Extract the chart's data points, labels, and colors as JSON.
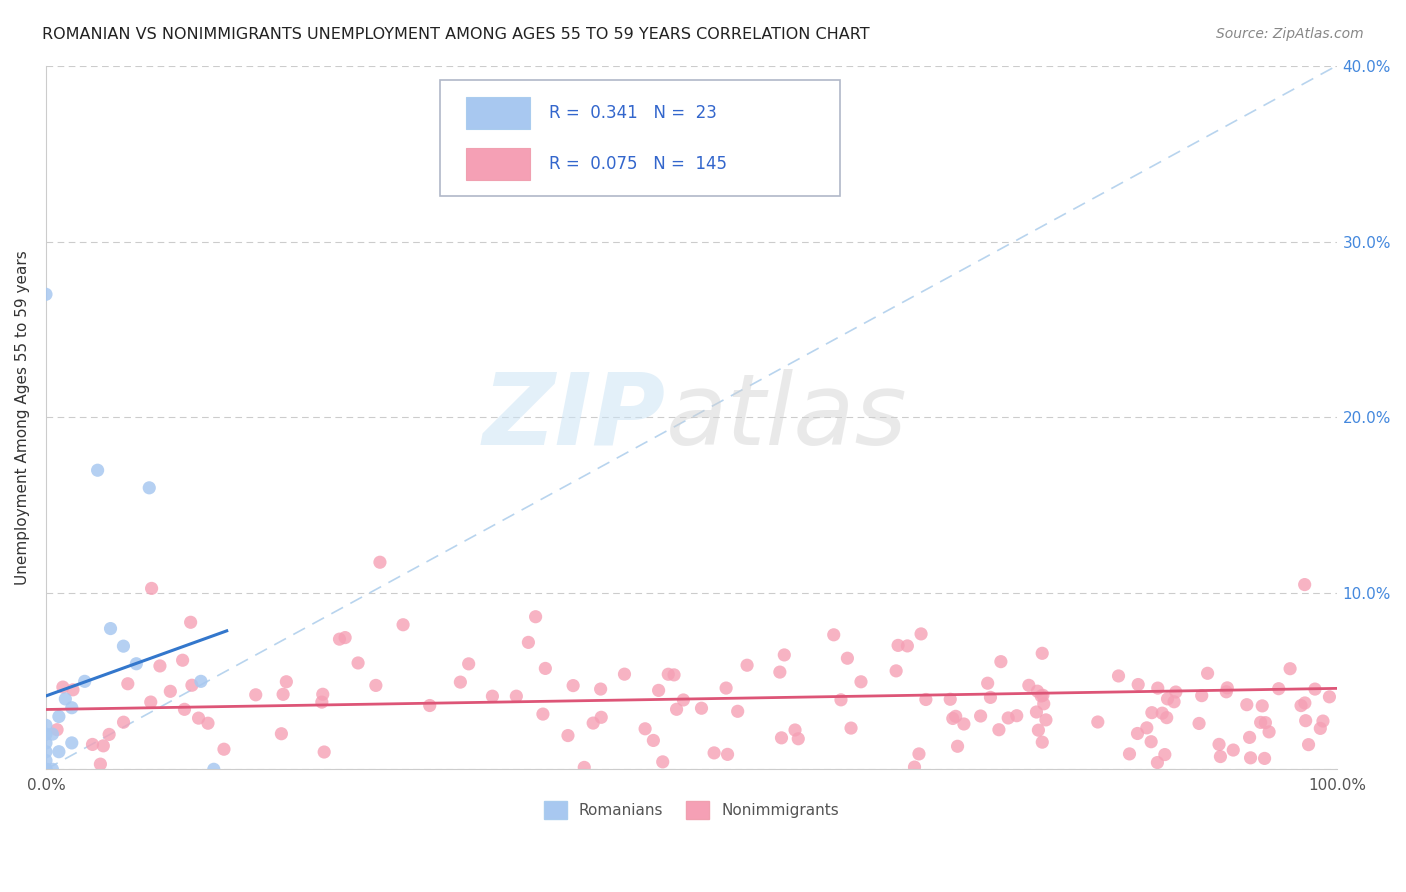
{
  "title": "ROMANIAN VS NONIMMIGRANTS UNEMPLOYMENT AMONG AGES 55 TO 59 YEARS CORRELATION CHART",
  "source": "Source: ZipAtlas.com",
  "ylabel": "Unemployment Among Ages 55 to 59 years",
  "xlim": [
    0,
    1.0
  ],
  "ylim": [
    0,
    0.4
  ],
  "background_color": "#ffffff",
  "grid_color": "#cccccc",
  "romanian_color": "#a8c8f0",
  "nonimmigrant_color": "#f5a0b5",
  "romanian_line_color": "#3377cc",
  "nonimmigrant_line_color": "#dd5577",
  "diagonal_color": "#b8d4ee",
  "R_romanian": 0.341,
  "N_romanian": 23,
  "R_nonimmigrant": 0.075,
  "N_nonimmigrant": 145,
  "legend_label_1": "Romanians",
  "legend_label_2": "Nonimmigrants",
  "ytick_color": "#4488dd",
  "xtick_color": "#555555",
  "title_color": "#222222",
  "source_color": "#888888",
  "ylabel_color": "#333333"
}
